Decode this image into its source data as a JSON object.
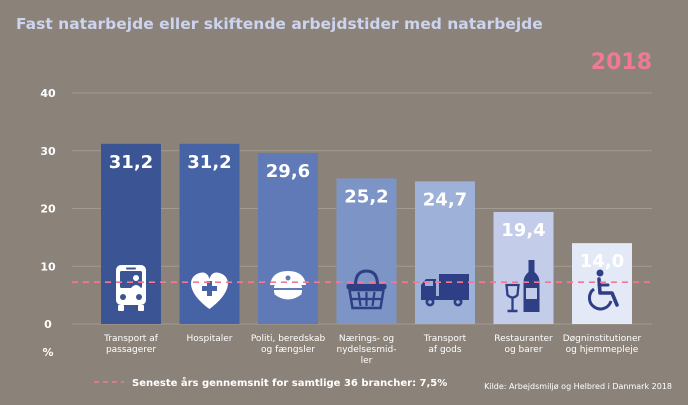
{
  "chart_data": {
    "type": "bar",
    "title": "Fast natarbejde eller skiftende arbejdstider med natarbejde",
    "year_label": "2018",
    "ylabel": "%",
    "ylim": [
      0,
      40
    ],
    "yticks": [
      0,
      10,
      20,
      30,
      40
    ],
    "ytick_labels": [
      "0",
      "10",
      "20",
      "30",
      "40"
    ],
    "categories": [
      [
        "Transport af",
        "passagerer"
      ],
      [
        "Hospitaler"
      ],
      [
        "Politi, beredskab",
        "og fængsler"
      ],
      [
        "Nærings- og",
        "nydelsesmid-",
        "ler"
      ],
      [
        "Transport",
        "af gods"
      ],
      [
        "Restauranter",
        "og barer"
      ],
      [
        "Døgninstitutioner",
        "og hjemmepleje"
      ]
    ],
    "values": [
      31.2,
      31.2,
      29.6,
      25.2,
      24.7,
      19.4,
      14.0
    ],
    "value_labels": [
      "31,2",
      "31,2",
      "29,6",
      "25,2",
      "24,7",
      "19,4",
      "14,0"
    ],
    "icons": [
      "bus-icon",
      "heart-cross-icon",
      "police-cap-icon",
      "basket-icon",
      "truck-icon",
      "bottle-glass-icon",
      "wheelchair-icon"
    ],
    "bar_colors": [
      "#3a5494",
      "#4663a6",
      "#5f7ab6",
      "#7d94c7",
      "#9eb1d9",
      "#c3cde9",
      "#e4e9f7"
    ],
    "icon_colors": [
      "#ffffff",
      "#ffffff",
      "#ffffff",
      "#2e3f85",
      "#2e3f85",
      "#2e3f85",
      "#2e3f85"
    ],
    "reference_line": {
      "value": 7.5,
      "label": "Seneste års gennemsnit for samtlige 36 brancher: 7,5%",
      "color": "#f07a93"
    },
    "source": "Kilde: Arbejdsmiljø og Helbred i Danmark 2018"
  }
}
